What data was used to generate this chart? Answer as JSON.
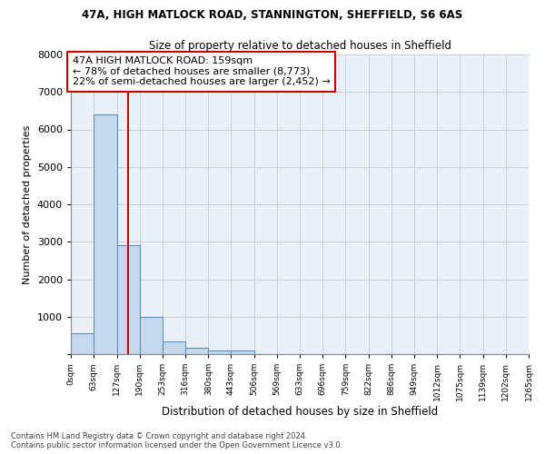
{
  "title1": "47A, HIGH MATLOCK ROAD, STANNINGTON, SHEFFIELD, S6 6AS",
  "title2": "Size of property relative to detached houses in Sheffield",
  "xlabel": "Distribution of detached houses by size in Sheffield",
  "ylabel": "Number of detached properties",
  "bar_values": [
    550,
    6400,
    2900,
    1000,
    350,
    175,
    100,
    100,
    0,
    0,
    0,
    0,
    0,
    0,
    0,
    0,
    0,
    0,
    0,
    0
  ],
  "bin_edges": [
    0,
    63,
    127,
    190,
    253,
    316,
    380,
    443,
    506,
    569,
    633,
    696,
    759,
    822,
    886,
    949,
    1012,
    1075,
    1139,
    1202,
    1265
  ],
  "tick_labels": [
    "0sqm",
    "63sqm",
    "127sqm",
    "190sqm",
    "253sqm",
    "316sqm",
    "380sqm",
    "443sqm",
    "506sqm",
    "569sqm",
    "633sqm",
    "696sqm",
    "759sqm",
    "822sqm",
    "886sqm",
    "949sqm",
    "1012sqm",
    "1075sqm",
    "1139sqm",
    "1202sqm",
    "1265sqm"
  ],
  "bar_color": "#c5d8ed",
  "bar_edge_color": "#5a8fc2",
  "grid_color": "#c8d0dc",
  "bg_color": "#eaf0f8",
  "red_line_x": 159,
  "annotation_line1": "47A HIGH MATLOCK ROAD: 159sqm",
  "annotation_line2": "← 78% of detached houses are smaller (8,773)",
  "annotation_line3": "22% of semi-detached houses are larger (2,452) →",
  "annotation_box_color": "#ffffff",
  "annotation_box_edge": "#cc0000",
  "red_line_color": "#cc0000",
  "footer1": "Contains HM Land Registry data © Crown copyright and database right 2024.",
  "footer2": "Contains public sector information licensed under the Open Government Licence v3.0.",
  "ylim": [
    0,
    8000
  ],
  "yticks": [
    0,
    1000,
    2000,
    3000,
    4000,
    5000,
    6000,
    7000,
    8000
  ]
}
